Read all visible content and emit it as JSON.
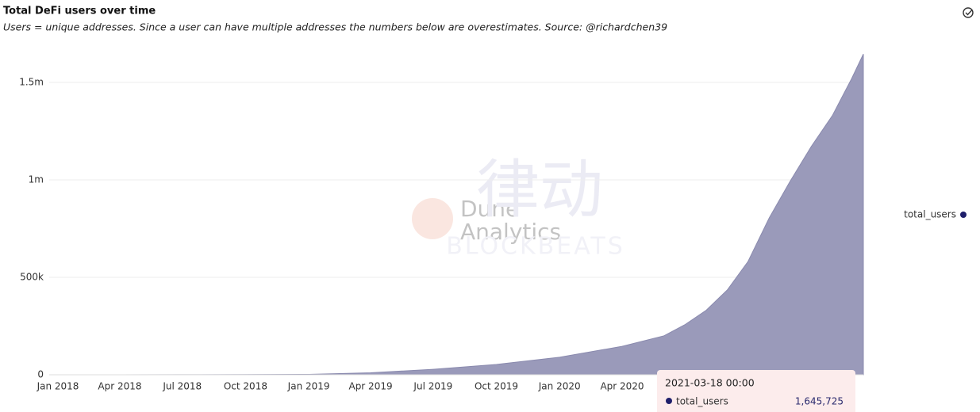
{
  "chart_data": {
    "type": "area",
    "title": "Total DeFi users over time",
    "subtitle": "Users = unique addresses. Since a user can have multiple addresses the numbers below are overestimates. Source: @richardchen39",
    "x": [
      "2018-01",
      "2018-04",
      "2018-07",
      "2018-10",
      "2019-01",
      "2019-04",
      "2019-07",
      "2019-10",
      "2020-01",
      "2020-04",
      "2020-06",
      "2020-07",
      "2020-08",
      "2020-09",
      "2020-10",
      "2020-11",
      "2020-12",
      "2021-01",
      "2021-02",
      "2021-03",
      "2021-03-18"
    ],
    "series": [
      {
        "name": "total_users",
        "color": "#9a9aba",
        "line_color": "#8a8aae",
        "legend_color": "#1f1f6b",
        "values": [
          0,
          200,
          500,
          1000,
          2000,
          10000,
          28000,
          53000,
          90000,
          146000,
          200000,
          256000,
          330000,
          435000,
          580000,
          805000,
          990000,
          1170000,
          1330000,
          1520000,
          1645725
        ]
      }
    ],
    "xlim": [
      "2018-01",
      "2021-03-18"
    ],
    "xticks": [
      {
        "value": "2018-01",
        "label": "Jan 2018"
      },
      {
        "value": "2018-04",
        "label": "Apr 2018"
      },
      {
        "value": "2018-07",
        "label": "Jul 2018"
      },
      {
        "value": "2018-10",
        "label": "Oct 2018"
      },
      {
        "value": "2019-01",
        "label": "Jan 2019"
      },
      {
        "value": "2019-04",
        "label": "Apr 2019"
      },
      {
        "value": "2019-07",
        "label": "Jul 2019"
      },
      {
        "value": "2019-10",
        "label": "Oct 2019"
      },
      {
        "value": "2020-01",
        "label": "Jan 2020"
      },
      {
        "value": "2020-04",
        "label": "Apr 2020"
      }
    ],
    "ylim": [
      0,
      1700000
    ],
    "yticks": [
      0,
      {
        "value": 500000,
        "label": "500k"
      },
      {
        "value": 1000000,
        "label": "1m"
      },
      {
        "value": 1500000,
        "label": "1.5m"
      }
    ],
    "grid": true,
    "legend": "right",
    "tooltip": {
      "x": "2021-03-18 00:00",
      "value_label": "1,645,725"
    },
    "watermark": {
      "brand": "Dune",
      "brand_sub": "Analytics",
      "mark": "律动",
      "mark_sub": "BLOCKBEATS"
    }
  }
}
